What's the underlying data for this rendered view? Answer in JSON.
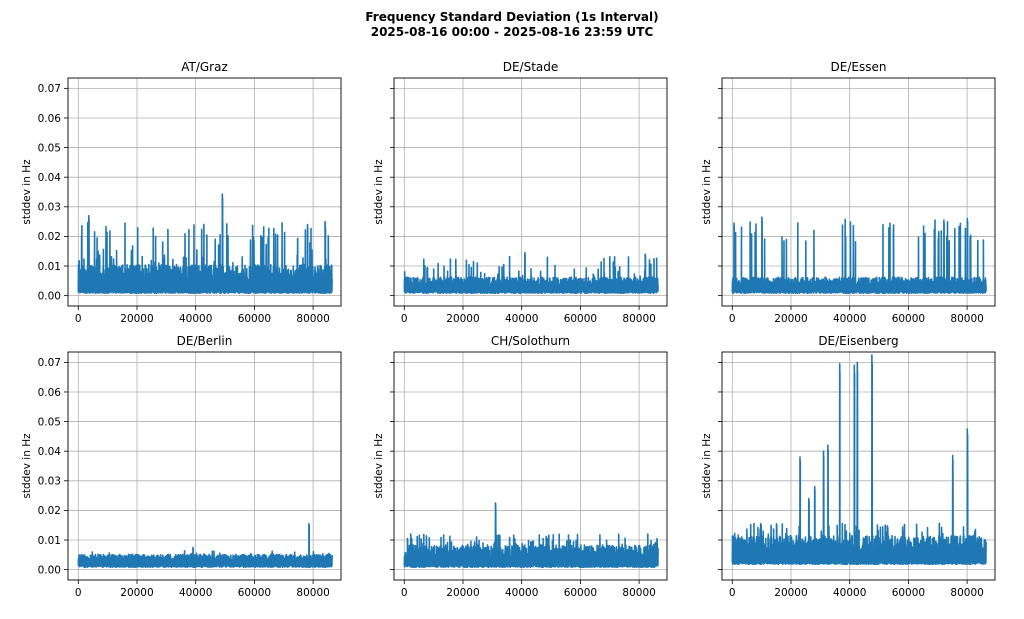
{
  "figure": {
    "title_line1": "Frequency Standard Deviation (1s Interval)",
    "title_line2": "2025-08-16 00:00 - 2025-08-16 23:59 UTC",
    "line_color": "#1f77b4"
  },
  "chart_data": [
    {
      "type": "line",
      "title": "AT/Graz",
      "ylabel": "stddev in Hz",
      "xlabel": "",
      "xlim": [
        -3500,
        89500
      ],
      "ylim": [
        -0.0035,
        0.0735
      ],
      "xticks": [
        0,
        20000,
        40000,
        60000,
        80000
      ],
      "yticks": [
        0.0,
        0.01,
        0.02,
        0.03,
        0.04,
        0.05,
        0.06,
        0.07
      ],
      "show_yticklabels": true,
      "grid": true,
      "series": [
        {
          "x_range": [
            0,
            86399
          ],
          "baseline": 0.002,
          "envelope_mean": 0.006,
          "spike_max": 0.0343,
          "spike_count": 85,
          "spike_range": [
            0.01,
            0.025
          ],
          "notable_peaks": [
            [
              3500,
              0.027
            ],
            [
              49000,
              0.0343
            ],
            [
              78000,
              0.024
            ],
            [
              84000,
              0.025
            ]
          ]
        }
      ]
    },
    {
      "type": "line",
      "title": "DE/Stade",
      "ylabel": "stddev in Hz",
      "xlabel": "",
      "xlim": [
        -3500,
        89500
      ],
      "ylim": [
        -0.0035,
        0.0735
      ],
      "xticks": [
        0,
        20000,
        40000,
        60000,
        80000
      ],
      "yticks": [
        0.0,
        0.01,
        0.02,
        0.03,
        0.04,
        0.05,
        0.06,
        0.07
      ],
      "show_yticklabels": false,
      "grid": true,
      "series": [
        {
          "x_range": [
            0,
            86399
          ],
          "baseline": 0.002,
          "envelope_mean": 0.004,
          "spike_max": 0.0145,
          "spike_count": 55,
          "spike_range": [
            0.006,
            0.0135
          ],
          "notable_peaks": [
            [
              41000,
              0.0145
            ],
            [
              82000,
              0.014
            ]
          ]
        }
      ]
    },
    {
      "type": "line",
      "title": "DE/Essen",
      "ylabel": "stddev in Hz",
      "xlabel": "",
      "xlim": [
        -3500,
        89500
      ],
      "ylim": [
        -0.0035,
        0.0735
      ],
      "xticks": [
        0,
        20000,
        40000,
        60000,
        80000
      ],
      "yticks": [
        0.0,
        0.01,
        0.02,
        0.03,
        0.04,
        0.05,
        0.06,
        0.07
      ],
      "show_yticklabels": false,
      "grid": true,
      "series": [
        {
          "x_range": [
            0,
            86399
          ],
          "baseline": 0.002,
          "envelope_mean": 0.004,
          "spike_max": 0.0265,
          "spike_count": 45,
          "spike_range": [
            0.018,
            0.026
          ],
          "notable_peaks": [
            [
              500,
              0.0245
            ],
            [
              10000,
              0.0265
            ],
            [
              72000,
              0.0255
            ],
            [
              80000,
              0.026
            ]
          ]
        }
      ]
    },
    {
      "type": "line",
      "title": "DE/Berlin",
      "ylabel": "stddev in Hz",
      "xlabel": "",
      "xlim": [
        -3500,
        89500
      ],
      "ylim": [
        -0.0035,
        0.0735
      ],
      "xticks": [
        0,
        20000,
        40000,
        60000,
        80000
      ],
      "yticks": [
        0.0,
        0.01,
        0.02,
        0.03,
        0.04,
        0.05,
        0.06,
        0.07
      ],
      "show_yticklabels": true,
      "grid": true,
      "series": [
        {
          "x_range": [
            0,
            86399
          ],
          "baseline": 0.002,
          "envelope_mean": 0.0035,
          "spike_max": 0.0155,
          "spike_count": 35,
          "spike_range": [
            0.004,
            0.0065
          ],
          "notable_peaks": [
            [
              39000,
              0.0075
            ],
            [
              78500,
              0.0155
            ]
          ]
        }
      ]
    },
    {
      "type": "line",
      "title": "CH/Solothurn",
      "ylabel": "stddev in Hz",
      "xlabel": "",
      "xlim": [
        -3500,
        89500
      ],
      "ylim": [
        -0.0035,
        0.0735
      ],
      "xticks": [
        0,
        20000,
        40000,
        60000,
        80000
      ],
      "yticks": [
        0.0,
        0.01,
        0.02,
        0.03,
        0.04,
        0.05,
        0.06,
        0.07
      ],
      "show_yticklabels": false,
      "grid": true,
      "series": [
        {
          "x_range": [
            0,
            86399
          ],
          "baseline": 0.002,
          "envelope_mean": 0.005,
          "spike_max": 0.0225,
          "spike_count": 90,
          "spike_range": [
            0.007,
            0.012
          ],
          "notable_peaks": [
            [
              1000,
              0.0105
            ],
            [
              31000,
              0.0225
            ],
            [
              86000,
              0.0105
            ]
          ]
        }
      ]
    },
    {
      "type": "line",
      "title": "DE/Eisenberg",
      "ylabel": "stddev in Hz",
      "xlabel": "",
      "xlim": [
        -3500,
        89500
      ],
      "ylim": [
        -0.0035,
        0.0735
      ],
      "xticks": [
        0,
        20000,
        40000,
        60000,
        80000
      ],
      "yticks": [
        0.0,
        0.01,
        0.02,
        0.03,
        0.04,
        0.05,
        0.06,
        0.07
      ],
      "show_yticklabels": false,
      "grid": true,
      "series": [
        {
          "x_range": [
            0,
            86399
          ],
          "baseline": 0.003,
          "envelope_mean": 0.007,
          "spike_max": 0.0725,
          "spike_count": 70,
          "spike_range": [
            0.01,
            0.016
          ],
          "notable_peaks": [
            [
              15000,
              0.0155
            ],
            [
              23000,
              0.038
            ],
            [
              26000,
              0.024
            ],
            [
              28000,
              0.028
            ],
            [
              31000,
              0.04
            ],
            [
              32500,
              0.042
            ],
            [
              36500,
              0.0695
            ],
            [
              41500,
              0.069
            ],
            [
              42500,
              0.07
            ],
            [
              47500,
              0.0725
            ],
            [
              52000,
              0.015
            ],
            [
              75000,
              0.0385
            ],
            [
              80000,
              0.0475
            ]
          ]
        }
      ]
    }
  ]
}
